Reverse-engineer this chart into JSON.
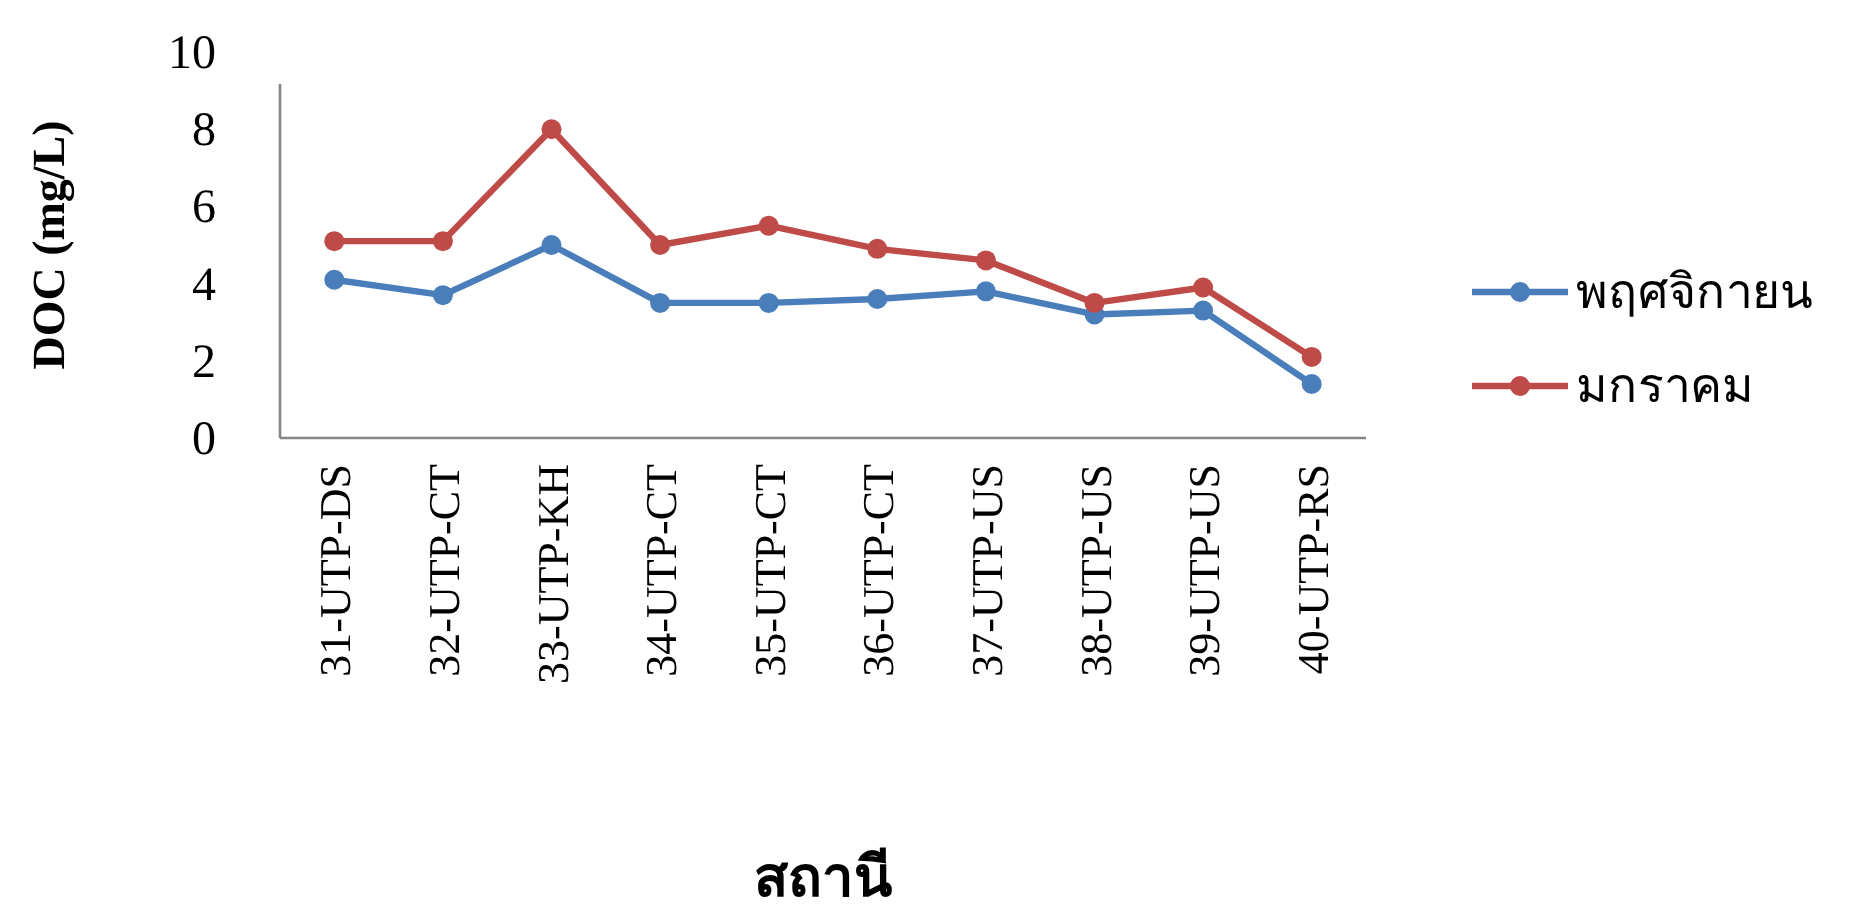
{
  "chart_data": {
    "type": "line",
    "xlabel": "สถานี",
    "ylabel": "DOC (mg/L)",
    "categories": [
      "31-UTP-DS",
      "32-UTP-CT",
      "33-UTP-KH",
      "34-UTP-CT",
      "35-UTP-CT",
      "36-UTP-CT",
      "37-UTP-US",
      "38-UTP-US",
      "39-UTP-US",
      "40-UTP-RS"
    ],
    "series": [
      {
        "name": "พฤศจิกายน",
        "color": "#4a7ebb",
        "values": [
          4.1,
          3.7,
          5.0,
          3.5,
          3.5,
          3.6,
          3.8,
          3.2,
          3.3,
          1.4
        ]
      },
      {
        "name": "มกราคม",
        "color": "#be4b48",
        "values": [
          5.1,
          5.1,
          8.0,
          5.0,
          5.5,
          4.9,
          4.6,
          3.5,
          3.9,
          2.1
        ]
      }
    ],
    "ylim": [
      0,
      10
    ],
    "yticks": [
      0,
      2,
      4,
      6,
      8,
      10
    ],
    "grid": false,
    "legend": "right",
    "marker": "circle",
    "line_style": "solid"
  }
}
